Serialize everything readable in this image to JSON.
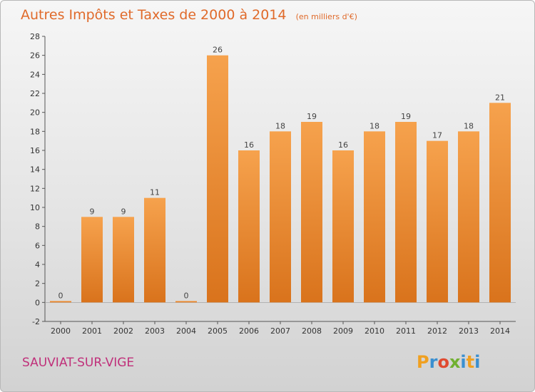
{
  "chart_data": {
    "type": "bar",
    "title": "Autres Impôts et Taxes de 2000 à 2014",
    "unit": "(en milliers d'€)",
    "categories": [
      "2000",
      "2001",
      "2002",
      "2003",
      "2004",
      "2005",
      "2006",
      "2007",
      "2008",
      "2009",
      "2010",
      "2011",
      "2012",
      "2013",
      "2014"
    ],
    "values": [
      0,
      9,
      9,
      11,
      0,
      26,
      16,
      18,
      19,
      16,
      18,
      19,
      17,
      18,
      21
    ],
    "ylim": [
      -2,
      28
    ],
    "yticks": [
      -2,
      0,
      2,
      4,
      6,
      8,
      10,
      12,
      14,
      16,
      18,
      20,
      22,
      24,
      26,
      28
    ],
    "xlabel": "",
    "ylabel": "",
    "grid": false,
    "bar_color": "#f0913a",
    "title_color": "#e06a2a"
  },
  "footer": {
    "place": "SAUVIAT-SUR-VIGE",
    "logo_letters": [
      "P",
      "r",
      "o",
      "x",
      "i",
      "t",
      "i"
    ],
    "logo_colors": [
      "#f0a020",
      "#3a8fd0",
      "#e04a30",
      "#70b030",
      "#3a8fd0",
      "#f0a020",
      "#3a8fd0"
    ]
  }
}
